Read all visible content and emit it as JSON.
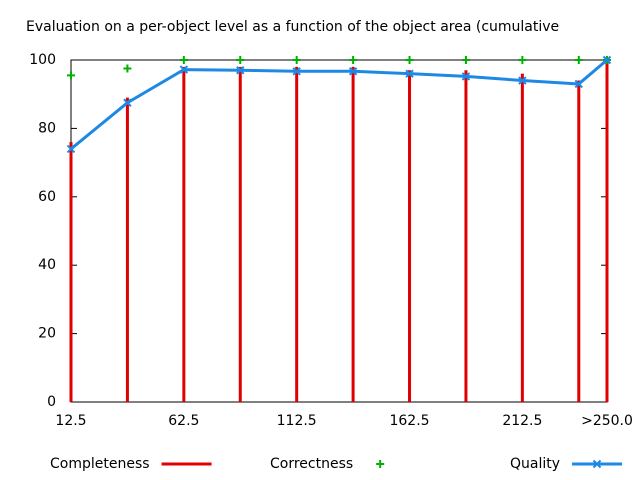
{
  "chart_data": {
    "type": "line",
    "title": "Evaluation on a per-object level as a function of the object area (cumulative",
    "x": [
      12.5,
      37.5,
      62.5,
      87.5,
      112.5,
      137.5,
      162.5,
      187.5,
      212.5,
      237.5,
      250
    ],
    "series": [
      {
        "name": "Completeness",
        "color": "#e00000",
        "style": "impulses",
        "values": [
          76,
          89,
          98,
          98,
          98,
          98,
          97,
          97,
          96,
          94,
          100
        ]
      },
      {
        "name": "Correctness",
        "color": "#00b000",
        "style": "points",
        "values": [
          95.5,
          97.5,
          100,
          100,
          100,
          100,
          100,
          100,
          100,
          100,
          100
        ]
      },
      {
        "name": "Quality",
        "color": "#1e88e5",
        "style": "linespoints",
        "values": [
          74,
          87.5,
          97.2,
          97,
          96.7,
          96.7,
          96,
          95.2,
          94,
          93,
          100
        ]
      }
    ],
    "xlim": [
      12.5,
      250
    ],
    "xticks": [
      12.5,
      62.5,
      112.5,
      162.5,
      212.5,
      {
        "value": 250,
        "label": ">250.0"
      }
    ],
    "ylim": [
      0,
      100
    ],
    "yticks": [
      0,
      20,
      40,
      60,
      80,
      100
    ]
  }
}
